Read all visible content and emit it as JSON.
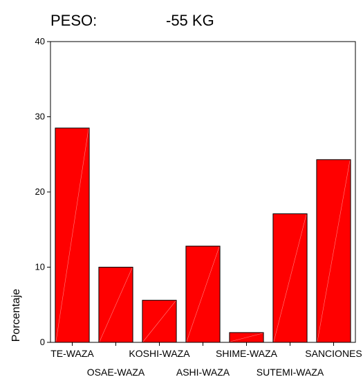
{
  "chart_data": {
    "type": "bar",
    "title_label": "PESO:",
    "title_value": "-55 KG",
    "ylabel": "Porcentaje",
    "xlabel": "",
    "ylim": [
      0,
      40
    ],
    "yticks": [
      "0",
      "10",
      "20",
      "30",
      "40"
    ],
    "categories": [
      "TE-WAZA",
      "OSAE-WAZA",
      "KOSHI-WAZA",
      "ASHI-WAZA",
      "SHIME-WAZA",
      "SUTEMI-WAZA",
      "SANCIONES"
    ],
    "values": [
      28.5,
      10.0,
      5.6,
      12.8,
      1.3,
      17.1,
      24.3
    ],
    "bar_color": "#ff0000",
    "grid": false,
    "legend": "none"
  }
}
